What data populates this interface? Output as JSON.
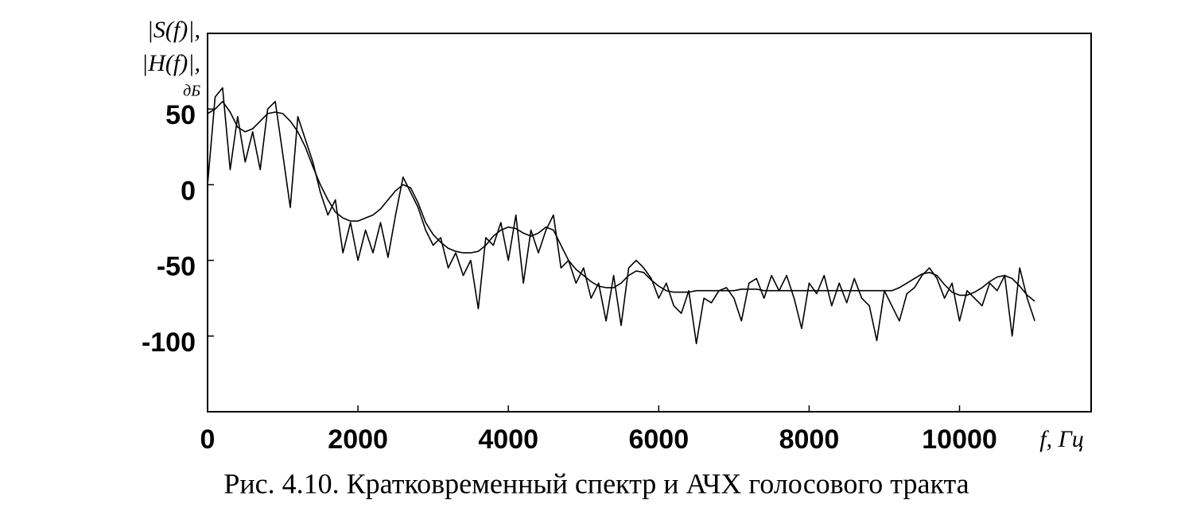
{
  "chart_data": {
    "type": "line",
    "caption": "Рис. 4.10. Кратковременный спектр и АЧХ голосового тракта",
    "ylabel": [
      "|S(f)|,",
      "|H(f)|,",
      "дБ"
    ],
    "xlabel": "f, Гц",
    "x": [
      0,
      100,
      200,
      300,
      400,
      500,
      600,
      700,
      800,
      900,
      1000,
      1100,
      1200,
      1300,
      1400,
      1500,
      1600,
      1700,
      1800,
      1900,
      2000,
      2100,
      2200,
      2300,
      2400,
      2500,
      2600,
      2700,
      2800,
      2900,
      3000,
      3100,
      3200,
      3300,
      3400,
      3500,
      3600,
      3700,
      3800,
      3900,
      4000,
      4100,
      4200,
      4300,
      4400,
      4500,
      4600,
      4700,
      4800,
      4900,
      5000,
      5100,
      5200,
      5300,
      5400,
      5500,
      5600,
      5700,
      5800,
      5900,
      6000,
      6100,
      6200,
      6300,
      6400,
      6500,
      6600,
      6700,
      6800,
      6900,
      7000,
      7100,
      7200,
      7300,
      7400,
      7500,
      7600,
      7700,
      7800,
      7900,
      8000,
      8100,
      8200,
      8300,
      8400,
      8500,
      8600,
      8700,
      8800,
      8900,
      9000,
      9100,
      9200,
      9300,
      9400,
      9500,
      9600,
      9700,
      9800,
      9900,
      10000,
      10100,
      10200,
      10300,
      10400,
      10500,
      10600,
      10700,
      10800,
      10900,
      11000
    ],
    "series": [
      {
        "color": "#000000",
        "width": 1.6,
        "values": [
          0,
          58,
          64,
          10,
          45,
          15,
          35,
          10,
          50,
          55,
          20,
          -15,
          45,
          30,
          15,
          -5,
          -20,
          -10,
          -45,
          -25,
          -50,
          -30,
          -45,
          -25,
          -48,
          -20,
          5,
          -5,
          -15,
          -30,
          -40,
          -35,
          -55,
          -45,
          -60,
          -50,
          -82,
          -35,
          -40,
          -25,
          -50,
          -20,
          -65,
          -30,
          -45,
          -30,
          -20,
          -55,
          -50,
          -65,
          -55,
          -75,
          -65,
          -90,
          -60,
          -93,
          -55,
          -50,
          -55,
          -62,
          -75,
          -65,
          -80,
          -85,
          -70,
          -105,
          -75,
          -78,
          -70,
          -68,
          -75,
          -90,
          -65,
          -62,
          -75,
          -60,
          -70,
          -60,
          -75,
          -95,
          -65,
          -72,
          -60,
          -80,
          -65,
          -78,
          -62,
          -75,
          -80,
          -103,
          -70,
          -80,
          -90,
          -72,
          -68,
          -60,
          -55,
          -62,
          -75,
          -65,
          -90,
          -70,
          -75,
          -80,
          -65,
          -70,
          -60,
          -100,
          -55,
          -75,
          -90
        ]
      },
      {
        "color": "#000000",
        "width": 1.6,
        "values": [
          47,
          50,
          55,
          48,
          38,
          35,
          37,
          42,
          47,
          48,
          47,
          42,
          35,
          25,
          12,
          0,
          -10,
          -18,
          -22,
          -24,
          -24,
          -22,
          -20,
          -16,
          -10,
          -4,
          0,
          -2,
          -12,
          -25,
          -33,
          -38,
          -42,
          -44,
          -45,
          -45,
          -44,
          -40,
          -34,
          -30,
          -28,
          -29,
          -32,
          -34,
          -32,
          -28,
          -30,
          -40,
          -50,
          -56,
          -60,
          -64,
          -67,
          -68,
          -68,
          -65,
          -60,
          -57,
          -58,
          -63,
          -67,
          -70,
          -71,
          -71,
          -71,
          -70,
          -70,
          -70,
          -70,
          -70,
          -70,
          -69,
          -69,
          -69,
          -70,
          -70,
          -70,
          -70,
          -70,
          -70,
          -70,
          -70,
          -70,
          -70,
          -70,
          -70,
          -70,
          -70,
          -70,
          -70,
          -70,
          -70,
          -68,
          -65,
          -62,
          -59,
          -58,
          -60,
          -66,
          -71,
          -73,
          -73,
          -71,
          -68,
          -64,
          -61,
          -60,
          -62,
          -67,
          -73,
          -77
        ]
      }
    ],
    "xlim": [
      0,
      11750
    ],
    "xticks": [
      0,
      2000,
      4000,
      6000,
      8000,
      10000
    ],
    "ylim": [
      -150,
      100
    ],
    "yticks": [
      50,
      0,
      -50,
      -100
    ]
  }
}
